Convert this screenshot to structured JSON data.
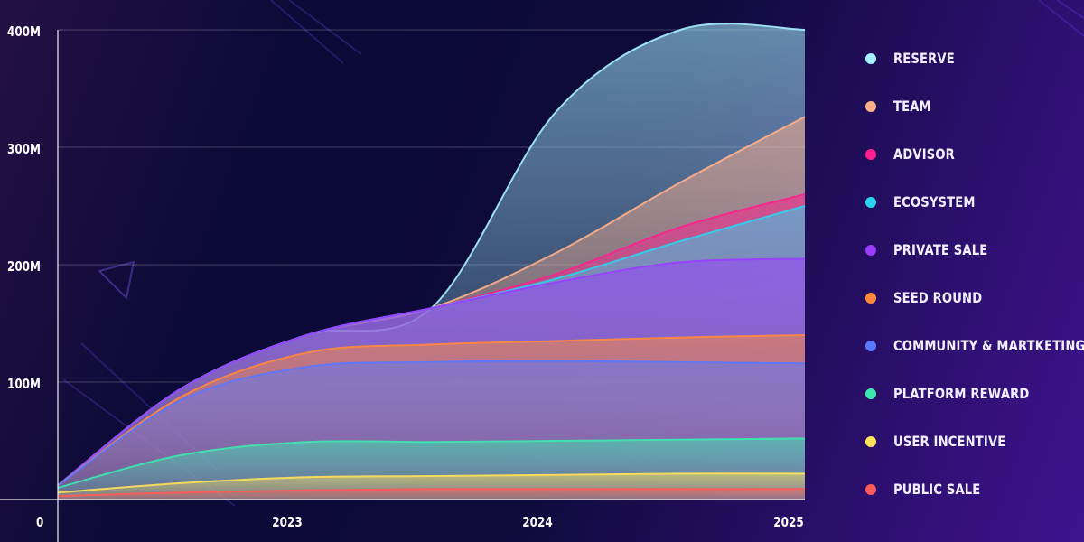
{
  "chart_data": {
    "type": "area",
    "title": "",
    "xlabel": "",
    "ylabel": "",
    "ylim": [
      0,
      400
    ],
    "x_ticks": [
      "2023",
      "2024",
      "2025"
    ],
    "y_ticks": [
      "0",
      "100M",
      "200M",
      "300M",
      "400M"
    ],
    "x": [
      0,
      0.5,
      1,
      1.5,
      2,
      2.5,
      3
    ],
    "series": [
      {
        "name": "PUBLIC SALE",
        "color": "#ff5a5a",
        "values": [
          3,
          6,
          8,
          9,
          9,
          9,
          9
        ]
      },
      {
        "name": "USER INCENTIVE",
        "color": "#ffe15a",
        "values": [
          6,
          14,
          19,
          20,
          21,
          22,
          22
        ]
      },
      {
        "name": "PLATFORM REWARD",
        "color": "#3de8b0",
        "values": [
          10,
          38,
          49,
          49,
          50,
          51,
          52
        ]
      },
      {
        "name": "COMMUNITY & MARTKETING",
        "color": "#5a78ff",
        "values": [
          12,
          85,
          113,
          117,
          118,
          117,
          116
        ]
      },
      {
        "name": "SEED ROUND",
        "color": "#ff8a3d",
        "values": [
          12,
          88,
          125,
          132,
          135,
          138,
          140
        ]
      },
      {
        "name": "PRIVATE SALE",
        "color": "#9a3dff",
        "values": [
          12,
          95,
          140,
          163,
          185,
          202,
          205
        ]
      },
      {
        "name": "ECOSYSTEM",
        "color": "#2ad4f0",
        "values": [
          12,
          95,
          140,
          163,
          188,
          220,
          250
        ]
      },
      {
        "name": "ADVISOR",
        "color": "#ff1f8e",
        "values": [
          12,
          95,
          140,
          163,
          192,
          232,
          260
        ]
      },
      {
        "name": "TEAM",
        "color": "#ffb08a",
        "values": [
          12,
          95,
          140,
          163,
          210,
          270,
          326
        ]
      },
      {
        "name": "RESERVE",
        "color": "#a6f0ff",
        "values": [
          12,
          95,
          140,
          163,
          330,
          400,
          400
        ]
      }
    ]
  }
}
